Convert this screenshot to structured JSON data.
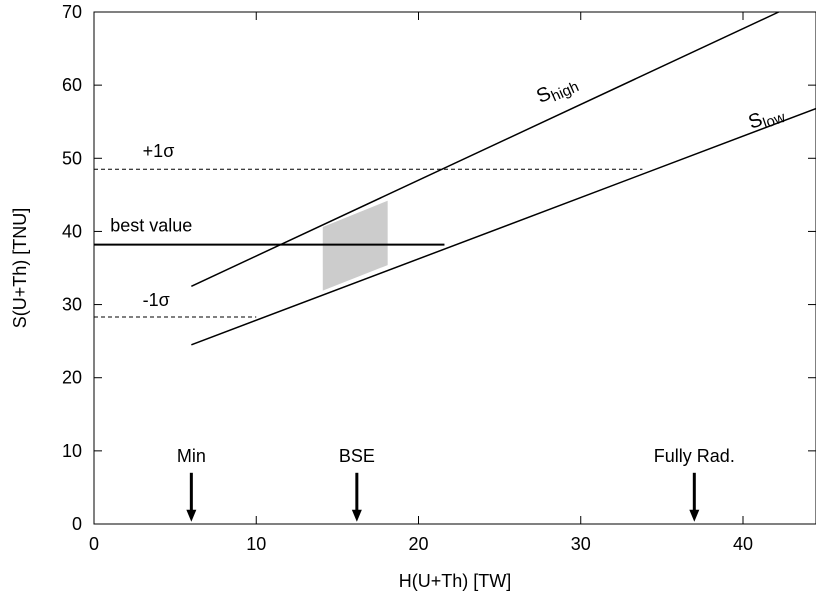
{
  "chart_data": {
    "type": "line",
    "xlabel": "H(U+Th) [TW]",
    "ylabel": "S(U+Th) [TNU]",
    "xlim": [
      0,
      44.5
    ],
    "ylim": [
      0,
      70
    ],
    "x_ticks": [
      0,
      10,
      20,
      30,
      40
    ],
    "y_ticks": [
      0,
      10,
      20,
      30,
      40,
      50,
      60,
      70
    ],
    "x_tick_labels": [
      "0",
      "10",
      "20",
      "30",
      "40"
    ],
    "y_tick_labels": [
      "0",
      "10",
      "20",
      "30",
      "40",
      "50",
      "60",
      "70"
    ],
    "grid": false,
    "series": [
      {
        "name": "S_high",
        "label_main": "S",
        "label_sub": "high",
        "label_at": [
          27.5,
          57.5
        ],
        "label_rotation": -24,
        "x": [
          6,
          42.2
        ],
        "y": [
          32.5,
          70
        ]
      },
      {
        "name": "S_low",
        "label_main": "S",
        "label_sub": "low",
        "label_at": [
          40.5,
          54.0
        ],
        "label_rotation": -19,
        "x": [
          6,
          44.5
        ],
        "y": [
          24.5,
          56.8
        ]
      }
    ],
    "horizontal_lines": [
      {
        "label": "+1σ",
        "y": 48.5,
        "style": "dashed",
        "x_from": 0,
        "x_to": 33.8,
        "label_at": [
          3,
          50.2
        ]
      },
      {
        "label": "best value",
        "y": 38.2,
        "style": "solid",
        "x_from": 0,
        "x_to": 21.6,
        "label_at": [
          1,
          40.0
        ]
      },
      {
        "label": "-1σ",
        "y": 28.3,
        "style": "dashed",
        "x_from": 0,
        "x_to": 10,
        "label_at": [
          3,
          29.8
        ]
      }
    ],
    "shaded_region": {
      "polygon": [
        [
          14.1,
          31.9
        ],
        [
          18.1,
          35.4
        ],
        [
          18.1,
          44.2
        ],
        [
          14.1,
          40.6
        ]
      ],
      "color": "#cccccc"
    },
    "annotations": [
      {
        "text": "Min",
        "x": 6,
        "arrow_from_y": 7,
        "arrow_to_y": 0.3,
        "text_y": 8.5
      },
      {
        "text": "BSE",
        "x": 16.2,
        "arrow_from_y": 7,
        "arrow_to_y": 0.3,
        "text_y": 8.5
      },
      {
        "text": "Fully Rad.",
        "x": 37,
        "arrow_from_y": 7,
        "arrow_to_y": 0.3,
        "text_y": 8.5
      }
    ]
  }
}
